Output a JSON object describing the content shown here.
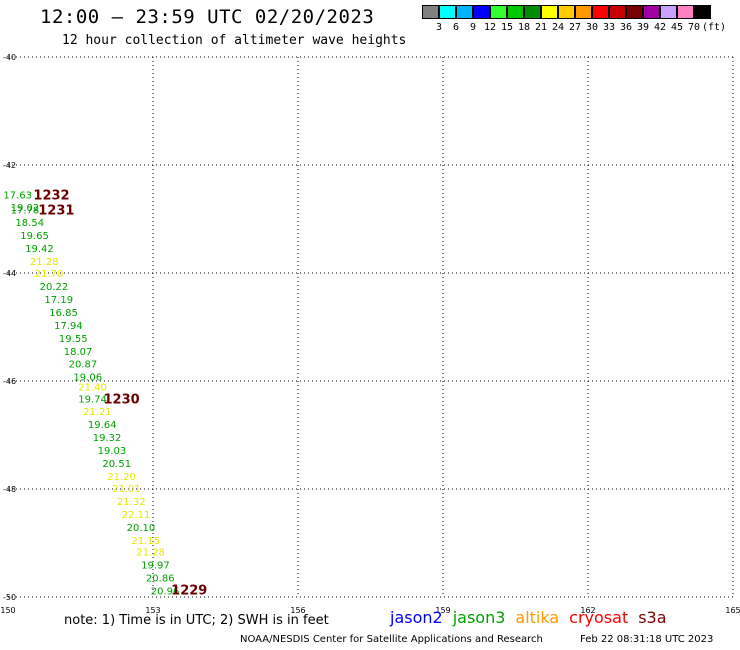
{
  "title": "12:00 – 23:59 UTC 02/20/2023",
  "subtitle": "12 hour collection of altimeter wave heights",
  "colorbar": {
    "unit": "(ft)",
    "labels": [
      "3",
      "6",
      "9",
      "12",
      "15",
      "18",
      "21",
      "24",
      "27",
      "30",
      "33",
      "36",
      "39",
      "42",
      "45",
      "70"
    ],
    "colors": [
      "#808080",
      "#00ffff",
      "#00b4ff",
      "#0000ff",
      "#30ff30",
      "#00c800",
      "#008c00",
      "#ffff00",
      "#ffcc00",
      "#ff9900",
      "#ff0000",
      "#c80000",
      "#780000",
      "#a000a0",
      "#c8a0ff",
      "#ff80c0",
      "#000000"
    ]
  },
  "map": {
    "lon_labels": [
      "150",
      "153",
      "156",
      "159",
      "162",
      "165"
    ],
    "lat_labels": [
      "-40",
      "-42",
      "-44",
      "-46",
      "-48",
      "-50"
    ]
  },
  "measurements": [
    {
      "v": "17.63",
      "lon": 150.2,
      "lat": -42.55,
      "color": "#00a000"
    },
    {
      "v": "19.02",
      "lon": 150.35,
      "lat": -42.78,
      "color": "#00a000"
    },
    {
      "v": "17.78",
      "lon": 150.35,
      "lat": -42.82,
      "color": "#00a000"
    },
    {
      "v": "18.54",
      "lon": 150.45,
      "lat": -43.06,
      "color": "#00a000"
    },
    {
      "v": "19.65",
      "lon": 150.55,
      "lat": -43.3,
      "color": "#00a000"
    },
    {
      "v": "19.42",
      "lon": 150.65,
      "lat": -43.54,
      "color": "#00a000"
    },
    {
      "v": "21.28",
      "lon": 150.75,
      "lat": -43.78,
      "color": "#e6e600"
    },
    {
      "v": "21.70",
      "lon": 150.85,
      "lat": -44.0,
      "color": "#e6e600"
    },
    {
      "v": "20.22",
      "lon": 150.95,
      "lat": -44.24,
      "color": "#00a000"
    },
    {
      "v": "17.19",
      "lon": 151.05,
      "lat": -44.48,
      "color": "#00a000"
    },
    {
      "v": "16.85",
      "lon": 151.15,
      "lat": -44.72,
      "color": "#00a000"
    },
    {
      "v": "17.94",
      "lon": 151.25,
      "lat": -44.96,
      "color": "#00a000"
    },
    {
      "v": "19.55",
      "lon": 151.35,
      "lat": -45.2,
      "color": "#00a000"
    },
    {
      "v": "18.07",
      "lon": 151.45,
      "lat": -45.44,
      "color": "#00a000"
    },
    {
      "v": "20.87",
      "lon": 151.55,
      "lat": -45.68,
      "color": "#00a000"
    },
    {
      "v": "19.06",
      "lon": 151.65,
      "lat": -45.92,
      "color": "#00a000"
    },
    {
      "v": "21.40",
      "lon": 151.75,
      "lat": -46.1,
      "color": "#e6e600"
    },
    {
      "v": "19.74",
      "lon": 151.75,
      "lat": -46.32,
      "color": "#00a000"
    },
    {
      "v": "21.21",
      "lon": 151.85,
      "lat": -46.56,
      "color": "#e6e600"
    },
    {
      "v": "19.64",
      "lon": 151.95,
      "lat": -46.8,
      "color": "#00a000"
    },
    {
      "v": "19.32",
      "lon": 152.05,
      "lat": -47.04,
      "color": "#00a000"
    },
    {
      "v": "19.03",
      "lon": 152.15,
      "lat": -47.28,
      "color": "#00a000"
    },
    {
      "v": "20.51",
      "lon": 152.25,
      "lat": -47.52,
      "color": "#00a000"
    },
    {
      "v": "21.20",
      "lon": 152.35,
      "lat": -47.76,
      "color": "#e6e600"
    },
    {
      "v": "21.01",
      "lon": 152.45,
      "lat": -47.98,
      "color": "#e6e600"
    },
    {
      "v": "21.32",
      "lon": 152.55,
      "lat": -48.22,
      "color": "#e6e600"
    },
    {
      "v": "22.11",
      "lon": 152.65,
      "lat": -48.46,
      "color": "#e6e600"
    },
    {
      "v": "20.10",
      "lon": 152.75,
      "lat": -48.7,
      "color": "#00a000"
    },
    {
      "v": "21.15",
      "lon": 152.85,
      "lat": -48.94,
      "color": "#e6e600"
    },
    {
      "v": "21.28",
      "lon": 152.95,
      "lat": -49.16,
      "color": "#e6e600"
    },
    {
      "v": "19.97",
      "lon": 153.05,
      "lat": -49.4,
      "color": "#00a000"
    },
    {
      "v": "20.86",
      "lon": 153.15,
      "lat": -49.64,
      "color": "#00a000"
    },
    {
      "v": "20.96",
      "lon": 153.25,
      "lat": -49.88,
      "color": "#00a000"
    }
  ],
  "cycle_labels": [
    {
      "v": "1232",
      "lon": 150.9,
      "lat": -42.55
    },
    {
      "v": "1231",
      "lon": 151.0,
      "lat": -42.82
    },
    {
      "v": "1230",
      "lon": 152.35,
      "lat": -46.32
    },
    {
      "v": "1229",
      "lon": 153.75,
      "lat": -49.86
    }
  ],
  "note": "note:  1) Time is in UTC;  2) SWH is in feet",
  "legend": [
    {
      "name": "jason2",
      "color": "#0000ff"
    },
    {
      "name": "jason3",
      "color": "#00a000"
    },
    {
      "name": "altika",
      "color": "#ff9900"
    },
    {
      "name": "cryosat",
      "color": "#ff0000"
    },
    {
      "name": "s3a",
      "color": "#780000"
    }
  ],
  "credit": "NOAA/NESDIS Center for Satellite Applications and Research",
  "timestamp": "Feb 22 08:31:18 UTC 2023"
}
